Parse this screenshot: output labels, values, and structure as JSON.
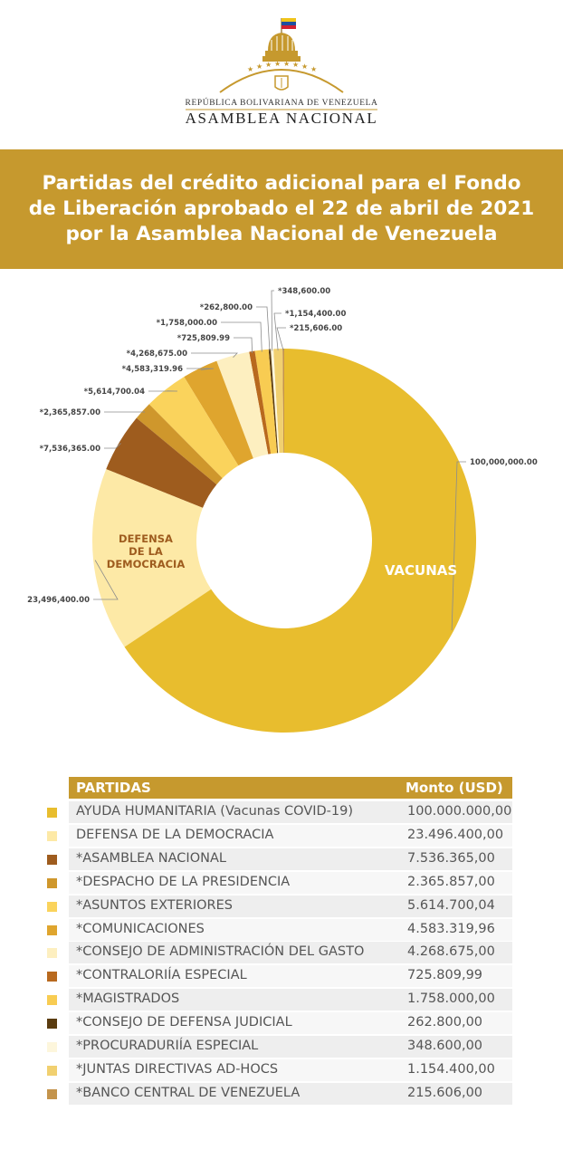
{
  "logo": {
    "line1": "REPÚBLICA BOLIVARIANA DE VENEZUELA",
    "line2": "ASAMBLEA NACIONAL"
  },
  "title": "Partidas del crédito adicional para el Fondo de Liberación aprobado el 22 de abril de 2021 por la Asamblea Nacional de Venezuela",
  "chart_data": {
    "type": "pie",
    "title": "Partidas del crédito adicional para el Fondo de Liberación aprobado el 22 de abril de 2021 por la Asamblea Nacional de Venezuela",
    "slices": [
      {
        "label": "*215,606.00",
        "value": 215606.0,
        "color": "#c4944c"
      },
      {
        "label": "*1,154,400.00",
        "value": 1154400.0,
        "color": "#f1d070"
      },
      {
        "label": "*348,600.00",
        "value": 348600.0,
        "color": "#fdf6dc"
      },
      {
        "label": "*262,800.00",
        "value": 262800.0,
        "color": "#5a3c10"
      },
      {
        "label": "*1,758,000.00",
        "value": 1758000.0,
        "color": "#f8cc52"
      },
      {
        "label": "*725,809.99",
        "value": 725809.99,
        "color": "#b8691e"
      },
      {
        "label": "*4,268,675.00",
        "value": 4268675.0,
        "color": "#fdefc0"
      },
      {
        "label": "*4,583,319.96",
        "value": 4583319.96,
        "color": "#dfa52e"
      },
      {
        "label": "*5,614,700.04",
        "value": 5614700.04,
        "color": "#fad35c"
      },
      {
        "label": "*2,365,857.00",
        "value": 2365857.0,
        "color": "#cf972c"
      },
      {
        "label": "*7,536,365.00",
        "value": 7536365.0,
        "color": "#9e5c1e"
      },
      {
        "label": "23,496,400.00",
        "value": 23496400.0,
        "color": "#fde9a6",
        "inner_label": "DEFENSA DE LA DEMOCRACIA",
        "inner_color": "#9e5c1e"
      },
      {
        "label": "100,000,000.00",
        "value": 100000000.0,
        "color": "#e8bd2e",
        "inner_label": "VACUNAS",
        "inner_color": "#ffffff"
      }
    ]
  },
  "table": {
    "header_name": "PARTIDAS",
    "header_amount": "Monto (USD)",
    "rows": [
      {
        "name": "AYUDA HUMANITARIA (Vacunas COVID-19)",
        "amount": "100.000.000,00",
        "color": "#e8bd2e"
      },
      {
        "name": "DEFENSA DE LA DEMOCRACIA",
        "amount": "23.496.400,00",
        "color": "#fde9a6"
      },
      {
        "name": "*ASAMBLEA NACIONAL",
        "amount": "7.536.365,00",
        "color": "#9e5c1e"
      },
      {
        "name": "*DESPACHO DE LA PRESIDENCIA",
        "amount": "2.365.857,00",
        "color": "#cf972c"
      },
      {
        "name": "*ASUNTOS EXTERIORES",
        "amount": "5.614.700,04",
        "color": "#fad35c"
      },
      {
        "name": "*COMUNICACIONES",
        "amount": "4.583.319,96",
        "color": "#dfa52e"
      },
      {
        "name": "*CONSEJO DE ADMINISTRACIÓN DEL GASTO",
        "amount": "4.268.675,00",
        "color": "#fdefc0"
      },
      {
        "name": "*CONTRALORIÍA ESPECIAL",
        "amount": "725.809,99",
        "color": "#b8691e"
      },
      {
        "name": "*MAGISTRADOS",
        "amount": "1.758.000,00",
        "color": "#f8cc52"
      },
      {
        "name": "*CONSEJO DE DEFENSA JUDICIAL",
        "amount": "262.800,00",
        "color": "#5a3c10"
      },
      {
        "name": "*PROCURADURIÍA ESPECIAL",
        "amount": "348.600,00",
        "color": "#fdf6dc"
      },
      {
        "name": "*JUNTAS DIRECTIVAS AD-HOCS",
        "amount": "1.154.400,00",
        "color": "#f1d070"
      },
      {
        "name": "*BANCO CENTRAL DE VENEZUELA",
        "amount": "215.606,00",
        "color": "#c4944c"
      }
    ]
  }
}
